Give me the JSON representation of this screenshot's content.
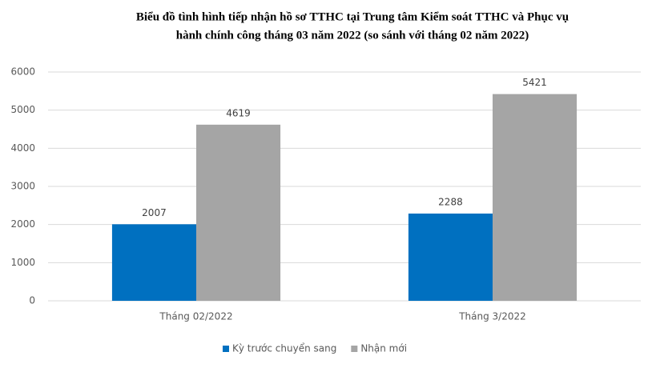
{
  "chart_data": {
    "type": "bar",
    "title": [
      "Biểu đồ tình hình tiếp nhận hồ sơ TTHC tại Trung tâm Kiểm soát TTHC và Phục vụ",
      "hành chính công tháng 03 năm 2022 (so sánh với tháng 02 năm 2022)"
    ],
    "categories": [
      "Tháng 02/2022",
      "Tháng 3/2022"
    ],
    "series": [
      {
        "name": "Kỳ trước chuyển sang",
        "color": "#0070c0",
        "values": [
          2007,
          2288
        ]
      },
      {
        "name": "Nhận mới",
        "color": "#a5a5a5",
        "values": [
          4619,
          5421
        ]
      }
    ],
    "ylim": [
      0,
      6000
    ],
    "yticks": [
      0,
      1000,
      2000,
      3000,
      4000,
      5000,
      6000
    ],
    "grid": true,
    "legend": "bottom"
  }
}
